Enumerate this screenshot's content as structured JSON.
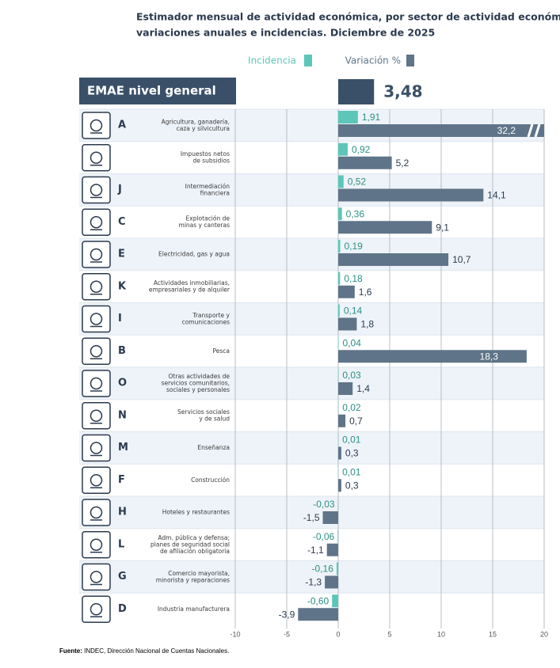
{
  "chart_data": {
    "type": "bar",
    "orientation": "horizontal",
    "title": [
      "Estimador mensual de actividad económica, por sector de actividad económica,",
      "variaciones anuales e incidencias. Diciembre de 2025"
    ],
    "header": {
      "label": "EMAE nivel general",
      "value": 3.48,
      "value_label": "3,48",
      "color": "#3a5068"
    },
    "codes": [
      "A",
      "",
      "J",
      "C",
      "E",
      "K",
      "I",
      "B",
      "O",
      "N",
      "M",
      "F",
      "H",
      "L",
      "G",
      "D"
    ],
    "categories": [
      [
        "Agricultura, ganadería,",
        "caza y silvicultura"
      ],
      [
        "Impuestos netos",
        "de subsidios"
      ],
      [
        "Intermediación",
        "financiera"
      ],
      [
        "Explotación de",
        "minas y canteras"
      ],
      [
        "Electricidad, gas y agua"
      ],
      [
        "Actividades inmobiliarias,",
        "empresariales y de alquiler"
      ],
      [
        "Transporte y",
        "comunicaciones"
      ],
      [
        "Pesca"
      ],
      [
        "Otras actividades de",
        "servicios comunitarios,",
        "sociales y personales"
      ],
      [
        "Servicios sociales",
        "y de salud"
      ],
      [
        "Enseñanza"
      ],
      [
        "Construcción"
      ],
      [
        "Hoteles y restaurantes"
      ],
      [
        "Adm. pública y defensa;",
        "planes de seguridad social",
        "de afiliación obligatoria"
      ],
      [
        "Comercio mayorista,",
        "minorista y reparaciones"
      ],
      [
        "Industria manufacturera"
      ]
    ],
    "series": [
      {
        "name": "Incidencia",
        "color": "#5cc6b8",
        "values": [
          1.91,
          0.92,
          0.52,
          0.36,
          0.19,
          0.18,
          0.14,
          0.04,
          0.03,
          0.02,
          0.01,
          0.01,
          -0.03,
          -0.06,
          -0.16,
          -0.6
        ],
        "value_labels": [
          "1,91",
          "0,92",
          "0,52",
          "0,36",
          "0,19",
          "0,18",
          "0,14",
          "0,04",
          "0,03",
          "0,02",
          "0,01",
          "0,01",
          "-0,03",
          "-0,06",
          "-0,16",
          "-0,60"
        ]
      },
      {
        "name": "Variación %",
        "color": "#5f7488",
        "values": [
          32.2,
          5.2,
          14.1,
          9.1,
          10.7,
          1.6,
          1.8,
          18.3,
          1.4,
          0.7,
          0.3,
          0.3,
          -1.5,
          -1.1,
          -1.3,
          -3.9
        ],
        "value_labels": [
          "32,2",
          "5,2",
          "14,1",
          "9,1",
          "10,7",
          "1,6",
          "1,8",
          "18,3",
          "1,4",
          "0,7",
          "0,3",
          "0,3",
          "-1,5",
          "-1,1",
          "-1,3",
          "-3,9"
        ]
      }
    ],
    "xlim": [
      -10,
      20
    ],
    "xticks": [
      -10,
      -5,
      0,
      5,
      10,
      15,
      20
    ],
    "grid": true,
    "source": {
      "label": "Fuente:",
      "text": "INDEC, Dirección Nacional de Cuentas Nacionales."
    }
  }
}
